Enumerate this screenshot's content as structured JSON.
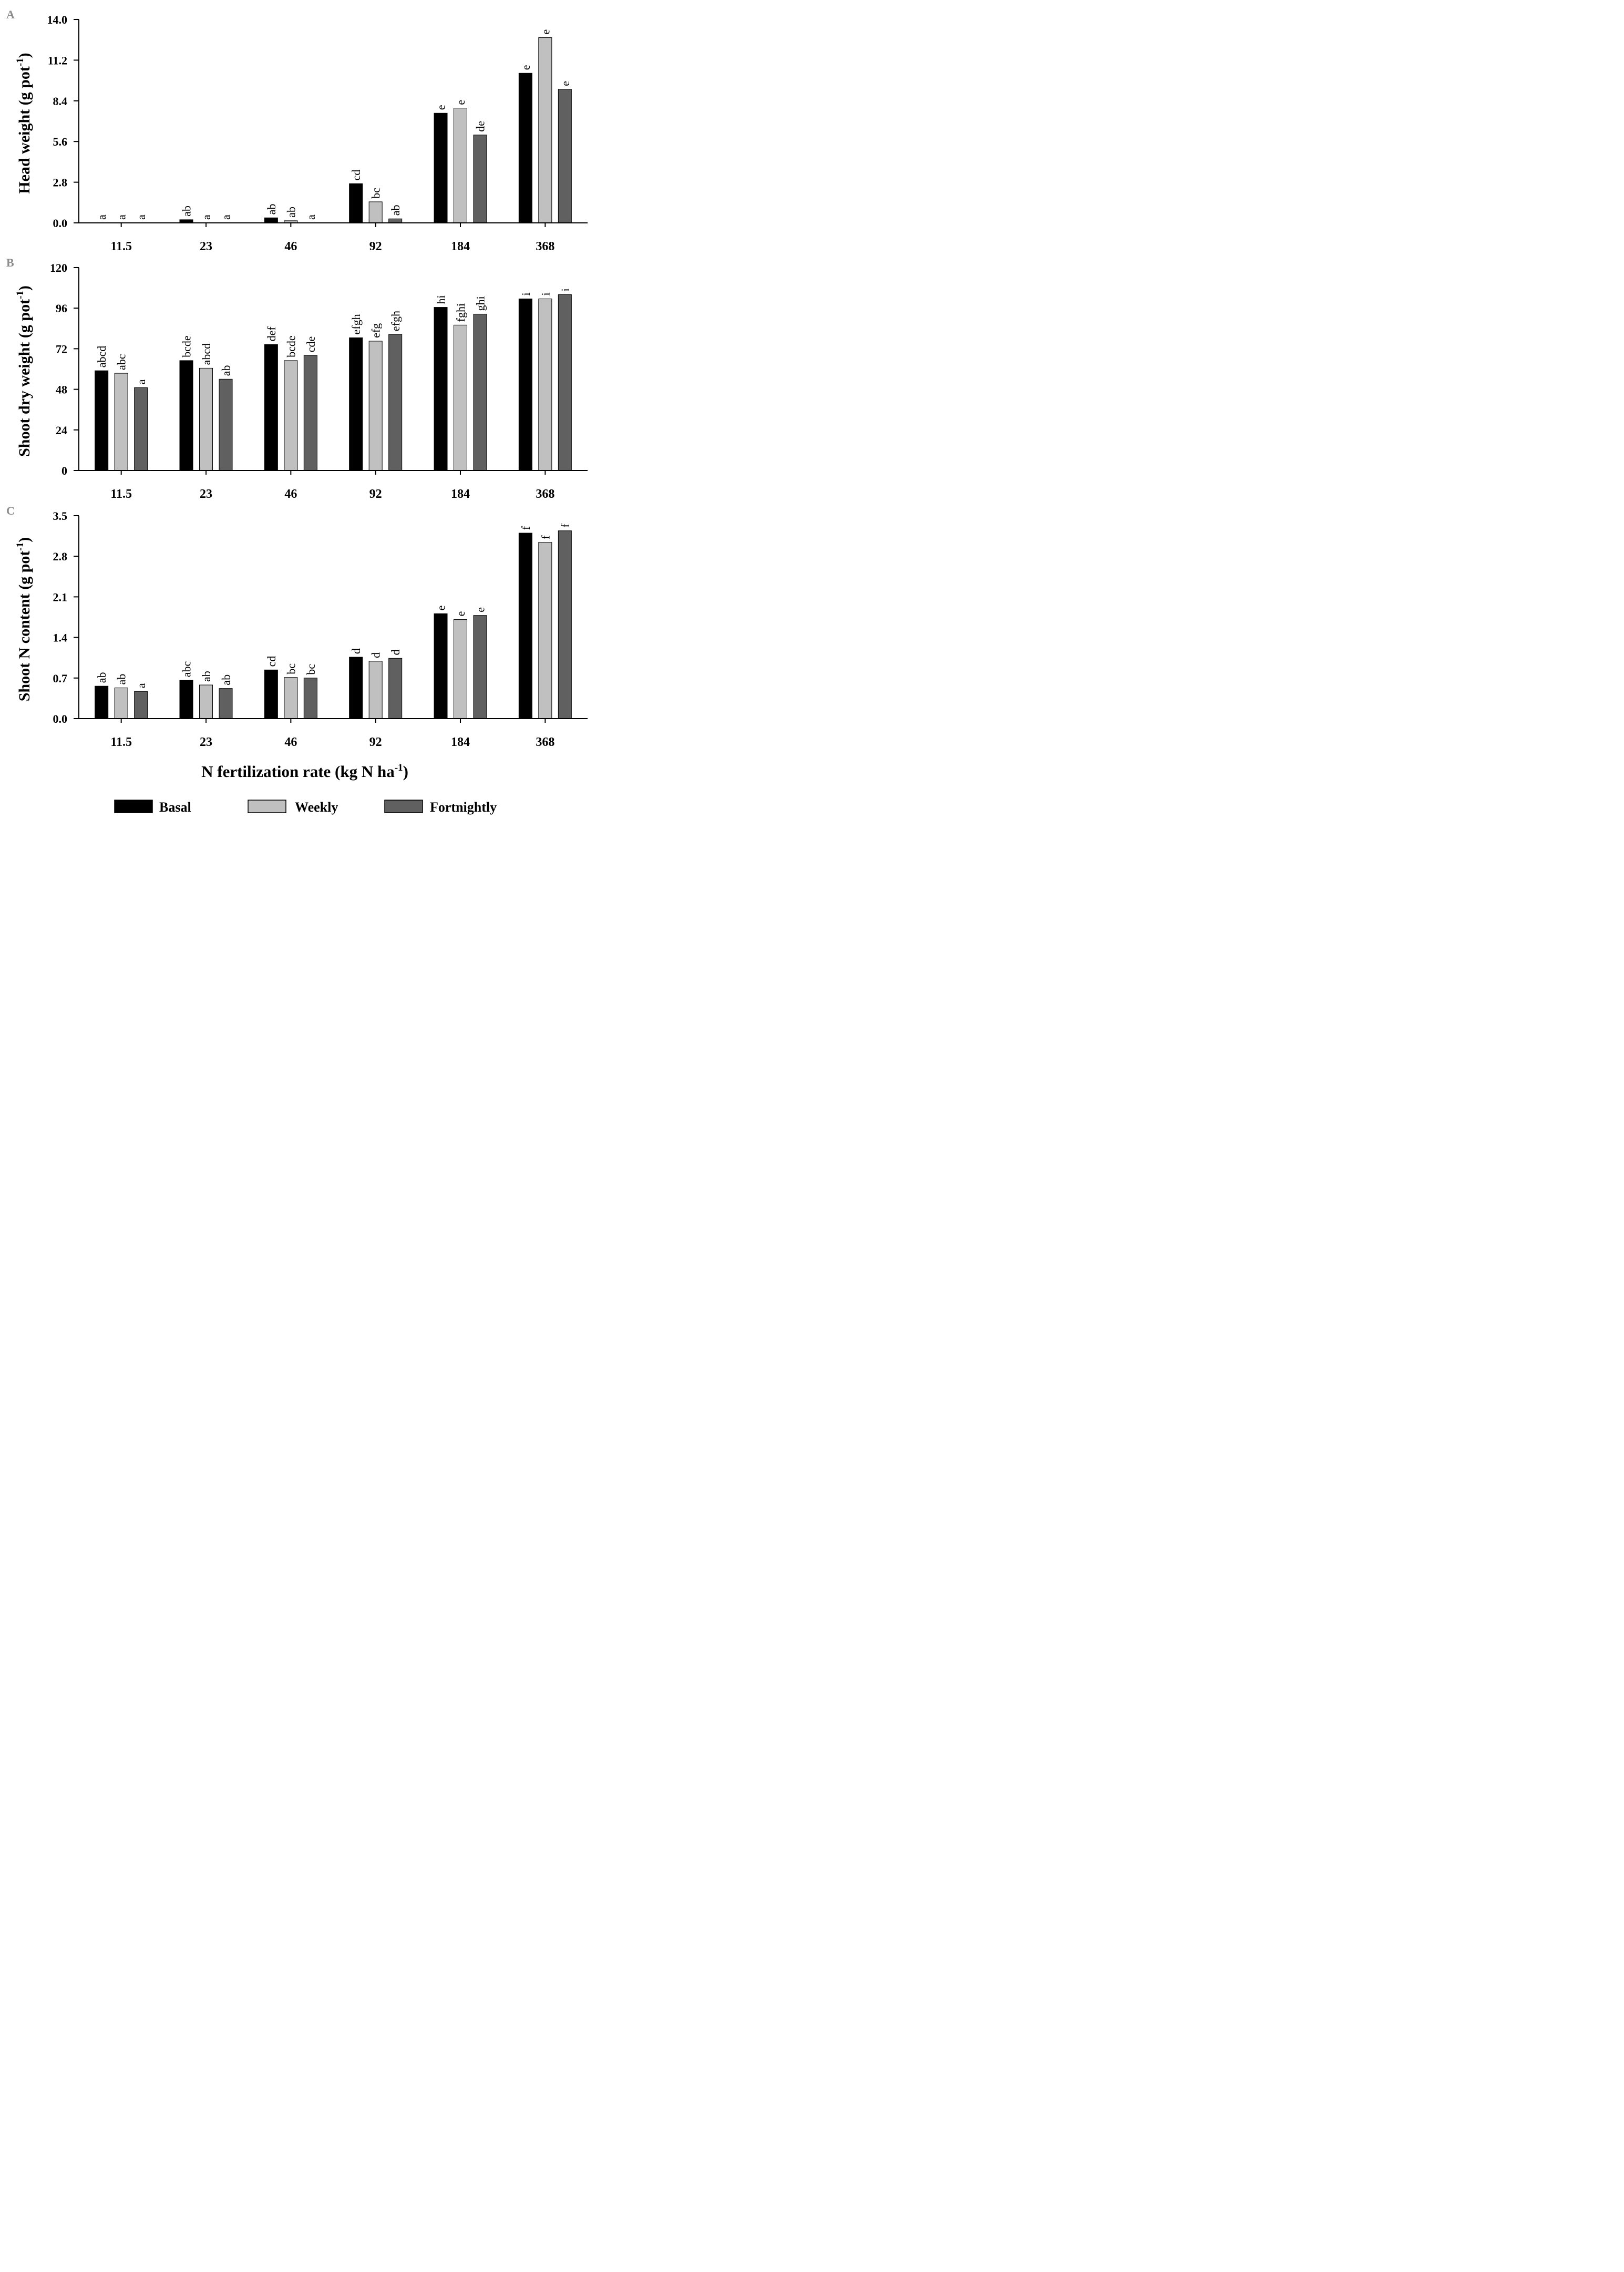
{
  "chart_data": [
    {
      "type": "bar",
      "panel": "A",
      "ylabel": "Head weight (g pot",
      "ylabel_sup": "-1",
      "ylabel_tail": ")",
      "ylim": [
        0,
        14
      ],
      "yticks": [
        "0.0",
        "2.8",
        "5.6",
        "8.4",
        "11.2",
        "14.0"
      ],
      "categories": [
        "11.5",
        "23",
        "46",
        "92",
        "184",
        "368"
      ],
      "series": [
        {
          "name": "Basal",
          "values": [
            0,
            0.22,
            0.35,
            2.7,
            7.55,
            10.3
          ],
          "letters": [
            "a",
            "ab",
            "ab",
            "cd",
            "e",
            "e"
          ]
        },
        {
          "name": "Weekly",
          "values": [
            0,
            0,
            0.15,
            1.45,
            7.9,
            12.75
          ],
          "letters": [
            "a",
            "a",
            "ab",
            "bc",
            "e",
            "e"
          ]
        },
        {
          "name": "Fortnightly",
          "values": [
            0,
            0,
            0,
            0.28,
            6.05,
            9.2
          ],
          "letters": [
            "a",
            "a",
            "a",
            "ab",
            "de",
            "e"
          ]
        }
      ]
    },
    {
      "type": "bar",
      "panel": "B",
      "ylabel": "Shoot dry weight (g pot",
      "ylabel_sup": "-1",
      "ylabel_tail": ")",
      "ylim": [
        0,
        120
      ],
      "yticks": [
        "0",
        "24",
        "48",
        "72",
        "96",
        "120"
      ],
      "categories": [
        "11.5",
        "23",
        "46",
        "92",
        "184",
        "368"
      ],
      "series": [
        {
          "name": "Basal",
          "values": [
            59,
            65,
            74.5,
            78.5,
            96.5,
            101.5
          ],
          "letters": [
            "abcd",
            "bcde",
            "def",
            "efgh",
            "hi",
            "i"
          ]
        },
        {
          "name": "Weekly",
          "values": [
            57.5,
            60.5,
            65,
            76.5,
            86,
            101.5
          ],
          "letters": [
            "abc",
            "abcd",
            "bcde",
            "efg",
            "fghi",
            "i"
          ]
        },
        {
          "name": "Fortnightly",
          "values": [
            49,
            54,
            68,
            80.5,
            92.5,
            104
          ],
          "letters": [
            "a",
            "ab",
            "cde",
            "efgh",
            "ghi",
            "i"
          ]
        }
      ]
    },
    {
      "type": "bar",
      "panel": "C",
      "ylabel": "Shoot N content (g pot",
      "ylabel_sup": "-1",
      "ylabel_tail": ")",
      "ylim": [
        0,
        3.5
      ],
      "yticks": [
        "0.0",
        "0.7",
        "1.4",
        "2.1",
        "2.8",
        "3.5"
      ],
      "categories": [
        "11.5",
        "23",
        "46",
        "92",
        "184",
        "368"
      ],
      "series": [
        {
          "name": "Basal",
          "values": [
            0.56,
            0.66,
            0.84,
            1.06,
            1.81,
            3.2
          ],
          "letters": [
            "ab",
            "abc",
            "cd",
            "d",
            "e",
            "f"
          ]
        },
        {
          "name": "Weekly",
          "values": [
            0.53,
            0.58,
            0.71,
            0.99,
            1.71,
            3.04
          ],
          "letters": [
            "ab",
            "ab",
            "bc",
            "d",
            "e",
            "f"
          ]
        },
        {
          "name": "Fortnightly",
          "values": [
            0.47,
            0.52,
            0.7,
            1.04,
            1.78,
            3.24
          ],
          "letters": [
            "a",
            "ab",
            "bc",
            "d",
            "e",
            "f"
          ]
        }
      ]
    }
  ],
  "xlabel": "N fertilization rate (kg N ha",
  "xlabel_sup": "-1",
  "xlabel_tail": ")",
  "legend": [
    {
      "label": "Basal",
      "color": "#000000"
    },
    {
      "label": "Weekly",
      "color": "#c0c0c0"
    },
    {
      "label": "Fortnightly",
      "color": "#606060"
    }
  ],
  "legend_position": "bottom",
  "colors": {
    "basal": "#000000",
    "weekly": "#c0c0c0",
    "fortnightly": "#606060"
  }
}
